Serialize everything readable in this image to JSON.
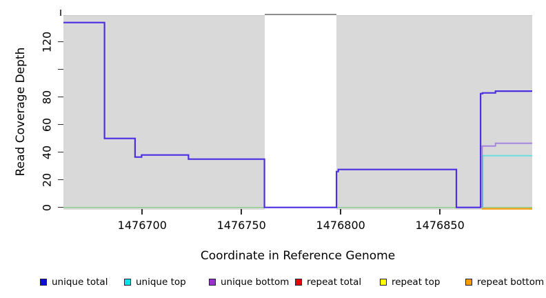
{
  "chart_data": {
    "type": "line",
    "subtype": "step-coverage-plot",
    "title": "",
    "xlabel": "Coordinate in Reference Genome",
    "ylabel": "Read Coverage Depth",
    "xlim": [
      1476660.3,
      1476896.5
    ],
    "ylim": [
      0,
      139.35
    ],
    "grid": false,
    "panel_bg": "#d9d9d9",
    "x_ticks": [
      {
        "value": 1476700,
        "label": "1476700"
      },
      {
        "value": 1476750,
        "label": "1476750"
      },
      {
        "value": 1476800,
        "label": "1476800"
      },
      {
        "value": 1476850,
        "label": "1476850"
      }
    ],
    "y_ticks": [
      {
        "value": 0,
        "label": "0"
      },
      {
        "value": 20,
        "label": "20"
      },
      {
        "value": 40,
        "label": "40"
      },
      {
        "value": 60,
        "label": "60"
      },
      {
        "value": 80,
        "label": "80"
      },
      {
        "value": 100,
        "label": ""
      },
      {
        "value": 120,
        "label": "120"
      }
    ],
    "gap_region": {
      "x_start": 1476761.8,
      "x_end": 1476797.9,
      "fill": "#ffffff",
      "cap_color": "#8f8f8f",
      "note": "white column with clipped gray line at top of plot"
    },
    "series": [
      {
        "name": "zero-baseline",
        "color": "#8dd08d",
        "width": 1.5,
        "dy": 0,
        "points": [
          [
            1476660.3,
            0
          ],
          [
            1476896.5,
            0
          ]
        ]
      },
      {
        "name": "repeat bottom",
        "color": "#ff9d0f",
        "width": 2.2,
        "dy": 2,
        "points": [
          [
            1476871.0,
            0
          ],
          [
            1476896.5,
            0
          ]
        ]
      },
      {
        "name": "unique top",
        "color": "#63dfdf",
        "width": 1.8,
        "dy": 0,
        "points": [
          [
            1476871.6,
            0
          ],
          [
            1476871.6,
            37.5
          ],
          [
            1476896.5,
            37.5
          ]
        ]
      },
      {
        "name": "unique bottom",
        "color": "#a37fe0",
        "width": 1.8,
        "dy": 0,
        "points": [
          [
            1476871.3,
            0
          ],
          [
            1476871.3,
            44.5
          ],
          [
            1476878,
            44.5
          ],
          [
            1476878,
            46.5
          ],
          [
            1476896.5,
            46.5
          ]
        ]
      },
      {
        "name": "unique total",
        "color": "#4c2ee2",
        "width": 2.2,
        "dy": 0,
        "points": [
          [
            1476660.3,
            134
          ],
          [
            1476681,
            134
          ],
          [
            1476681,
            50
          ],
          [
            1476696.4,
            50
          ],
          [
            1476696.4,
            36.5
          ],
          [
            1476699.7,
            36.5
          ],
          [
            1476699.7,
            38
          ],
          [
            1476723.3,
            38
          ],
          [
            1476723.3,
            35
          ],
          [
            1476761.6,
            35
          ],
          [
            1476761.6,
            0
          ],
          [
            1476797.9,
            0
          ],
          [
            1476797.9,
            26
          ],
          [
            1476798.8,
            26
          ],
          [
            1476798.8,
            27.5
          ],
          [
            1476858.3,
            27.5
          ],
          [
            1476858.3,
            0
          ],
          [
            1476870.5,
            0
          ],
          [
            1476870.5,
            82.5
          ],
          [
            1476871.5,
            82.5
          ],
          [
            1476871.5,
            83
          ],
          [
            1476878,
            83
          ],
          [
            1476878,
            84.3
          ],
          [
            1476896.5,
            84.3
          ]
        ]
      }
    ],
    "legend": {
      "position": "bottom",
      "items": [
        {
          "label": "unique total",
          "color": "#0c0cdd"
        },
        {
          "label": "unique top",
          "color": "#00e5e5"
        },
        {
          "label": "unique bottom",
          "color": "#9932cc"
        },
        {
          "label": "repeat total",
          "color": "#e60000"
        },
        {
          "label": "repeat top",
          "color": "#ffff00"
        },
        {
          "label": "repeat bottom",
          "color": "#ff9d00"
        }
      ]
    }
  }
}
